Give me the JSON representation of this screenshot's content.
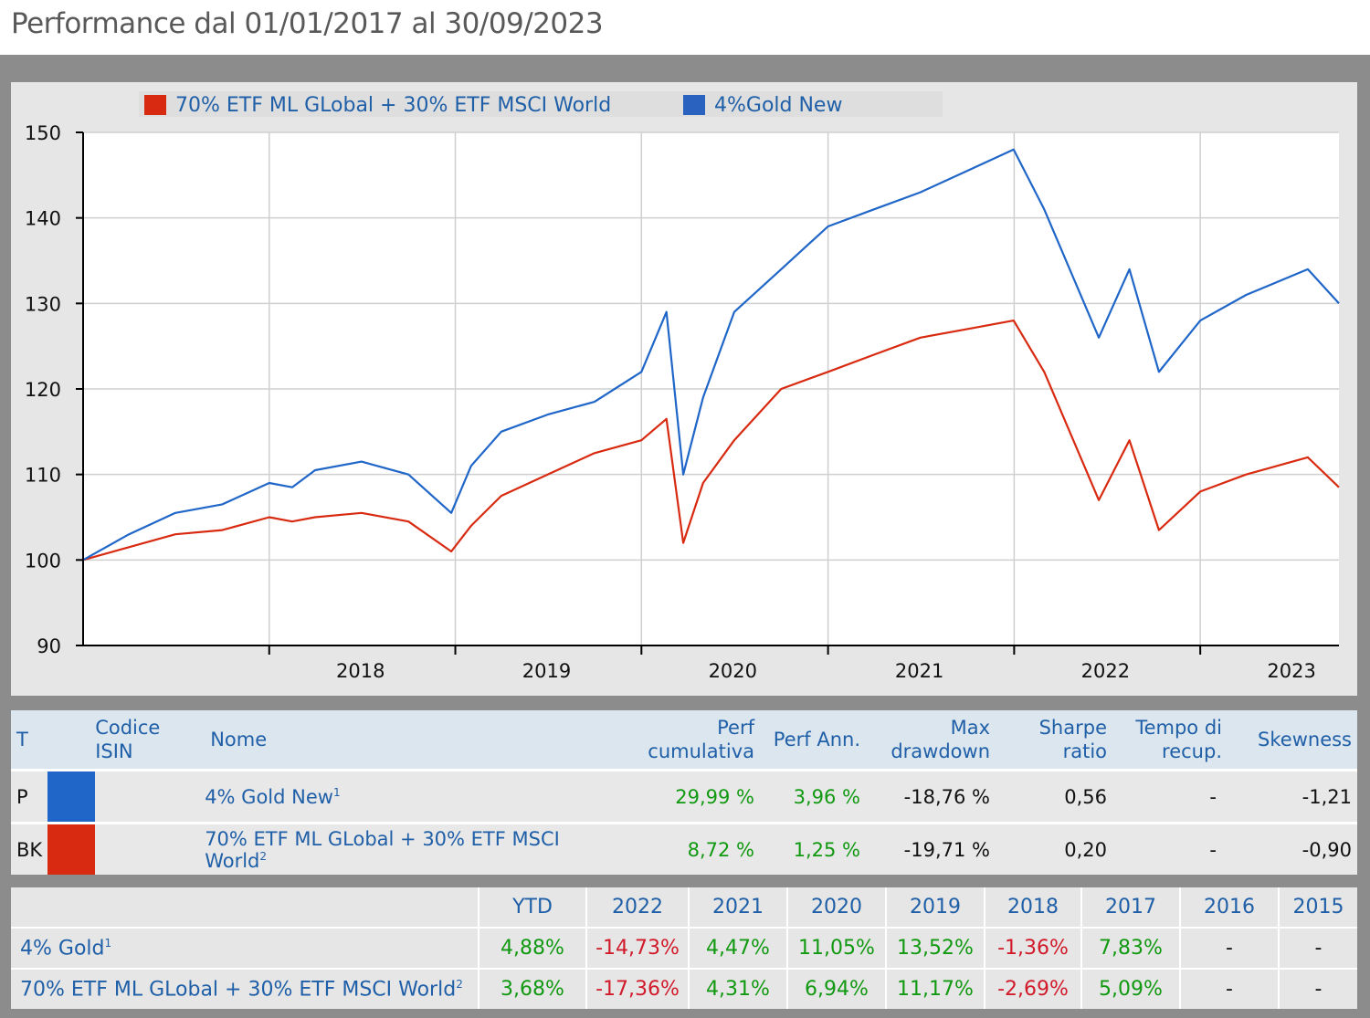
{
  "page_title": "Performance dal 01/01/2017 al 30/09/2023",
  "colors": {
    "portfolio": "#1f66c8",
    "benchmark": "#d82a10",
    "green": "#119911",
    "red": "#d11a2a"
  },
  "chart_data": {
    "type": "line",
    "title": "",
    "xlabel": "",
    "ylabel": "",
    "ylim": [
      90,
      150
    ],
    "yticks": [
      90,
      100,
      110,
      120,
      130,
      140,
      150
    ],
    "xticks": [
      "2018",
      "2019",
      "2020",
      "2021",
      "2022",
      "2023"
    ],
    "xlim": [
      "2017-01-01",
      "2023-09-30"
    ],
    "grid": true,
    "legend_position": "top",
    "x": [
      "2017-01-01",
      "2017-04-01",
      "2017-07-01",
      "2017-10-01",
      "2018-01-01",
      "2018-02-15",
      "2018-04-01",
      "2018-07-01",
      "2018-10-01",
      "2018-12-24",
      "2019-02-01",
      "2019-04-01",
      "2019-07-01",
      "2019-10-01",
      "2020-01-01",
      "2020-02-19",
      "2020-03-23",
      "2020-05-01",
      "2020-07-01",
      "2020-10-01",
      "2021-01-01",
      "2021-04-01",
      "2021-07-01",
      "2021-10-01",
      "2021-12-31",
      "2022-03-01",
      "2022-06-16",
      "2022-08-15",
      "2022-10-12",
      "2023-01-01",
      "2023-04-01",
      "2023-07-31",
      "2023-09-30"
    ],
    "series": [
      {
        "name": "4%Gold New",
        "color": "#1f66c8",
        "values": [
          100,
          103,
          105.5,
          106.5,
          109,
          108.5,
          110.5,
          111.5,
          110,
          105.5,
          111,
          115,
          117,
          118.5,
          122,
          129,
          110,
          119,
          129,
          134,
          139,
          141,
          143,
          145.5,
          148,
          141,
          126,
          134,
          122,
          128,
          131,
          134,
          130
        ]
      },
      {
        "name": "70% ETF ML GLobal + 30% ETF MSCI World",
        "color": "#d82a10",
        "values": [
          100,
          101.5,
          103,
          103.5,
          105,
          104.5,
          105,
          105.5,
          104.5,
          101,
          104,
          107.5,
          110,
          112.5,
          114,
          116.5,
          102,
          109,
          114,
          120,
          122,
          124,
          126,
          127,
          128,
          122,
          107,
          114,
          103.5,
          108,
          110,
          112,
          108.5
        ]
      }
    ]
  },
  "legend": {
    "benchmark_label": "70% ETF ML GLobal + 30% ETF MSCI World",
    "portfolio_label": "4%Gold New"
  },
  "summary_table": {
    "headers": {
      "t": "T",
      "isin_1": "Codice",
      "isin_2": "ISIN",
      "nome": "Nome",
      "perf_cum_1": "Perf",
      "perf_cum_2": "cumulativa",
      "perf_ann": "Perf Ann.",
      "maxdd_1": "Max",
      "maxdd_2": "drawdown",
      "sharpe_1": "Sharpe",
      "sharpe_2": "ratio",
      "recup_1": "Tempo di",
      "recup_2": "recup.",
      "skew": "Skewness"
    },
    "rows": [
      {
        "t": "P",
        "isin": "",
        "nome": "4% Gold New",
        "note": "1",
        "perf_cum": "29,99 %",
        "perf_ann": "3,96 %",
        "maxdd": "-18,76 %",
        "sharpe": "0,56",
        "recup": "-",
        "skew": "-1,21"
      },
      {
        "t": "BK",
        "isin": "",
        "nome": "70% ETF ML GLobal + 30% ETF MSCI World",
        "note": "2",
        "perf_cum": "8,72 %",
        "perf_ann": "1,25 %",
        "maxdd": "-19,71 %",
        "sharpe": "0,20",
        "recup": "-",
        "skew": "-0,90"
      }
    ]
  },
  "annual_table": {
    "headers": [
      "YTD",
      "2022",
      "2021",
      "2020",
      "2019",
      "2018",
      "2017",
      "2016",
      "2015"
    ],
    "rows": [
      {
        "name": "4% Gold",
        "note": "1",
        "values": [
          "4,88%",
          "-14,73%",
          "4,47%",
          "11,05%",
          "13,52%",
          "-1,36%",
          "7,83%",
          "-",
          "-"
        ]
      },
      {
        "name": "70% ETF ML GLobal + 30% ETF MSCI World",
        "note": "2",
        "values": [
          "3,68%",
          "-17,36%",
          "4,31%",
          "6,94%",
          "11,17%",
          "-2,69%",
          "5,09%",
          "-",
          "-"
        ]
      }
    ]
  }
}
